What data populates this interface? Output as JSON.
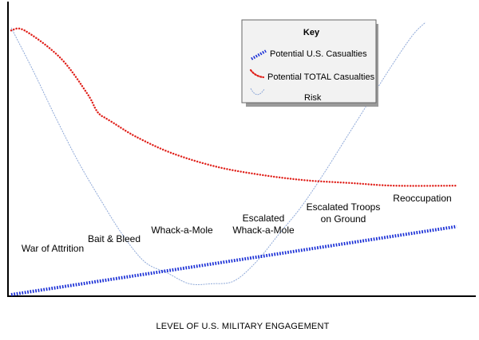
{
  "chart_data": {
    "type": "line",
    "title": "",
    "xlabel": "LEVEL OF U.S. MILITARY ENGAGEMENT",
    "ylabel": "",
    "xlim": [
      0,
      100
    ],
    "ylim": [
      0,
      100
    ],
    "grid": false,
    "legend": {
      "title": "Key",
      "placement": "top-right"
    },
    "categories": [
      "War of Attrition",
      "Bait & Bleed",
      "Whack-a-Mole",
      "Escalated Whack-a-Mole",
      "Escalated Troops on Ground",
      "Reoccupation"
    ],
    "series": [
      {
        "name": "Potential U.S. Casualties",
        "color": "#1a2fd6",
        "style": "dotted-heavy",
        "x": [
          0,
          100
        ],
        "y": [
          0,
          25
        ]
      },
      {
        "name": "Potential TOTAL Casualties",
        "color": "#e0201a",
        "style": "dotted",
        "x": [
          0,
          3,
          11,
          17,
          19,
          20,
          21,
          23,
          28,
          36,
          46,
          56,
          66,
          76,
          86,
          100
        ],
        "y": [
          97,
          97,
          87,
          74,
          68,
          66,
          65,
          63,
          58,
          52,
          47,
          44,
          42,
          41,
          40,
          40
        ]
      },
      {
        "name": "Risk",
        "color": "#8fa9d8",
        "style": "dashed-thin",
        "x": [
          0,
          5,
          10,
          15,
          20,
          25,
          30,
          35,
          40,
          45,
          50,
          55,
          60,
          65,
          70,
          75,
          80,
          85,
          90,
          93
        ],
        "y": [
          98,
          82,
          65,
          49,
          35,
          22,
          12,
          8,
          4,
          4,
          5,
          12,
          22,
          32,
          44,
          57,
          70,
          83,
          95,
          100
        ]
      }
    ]
  }
}
